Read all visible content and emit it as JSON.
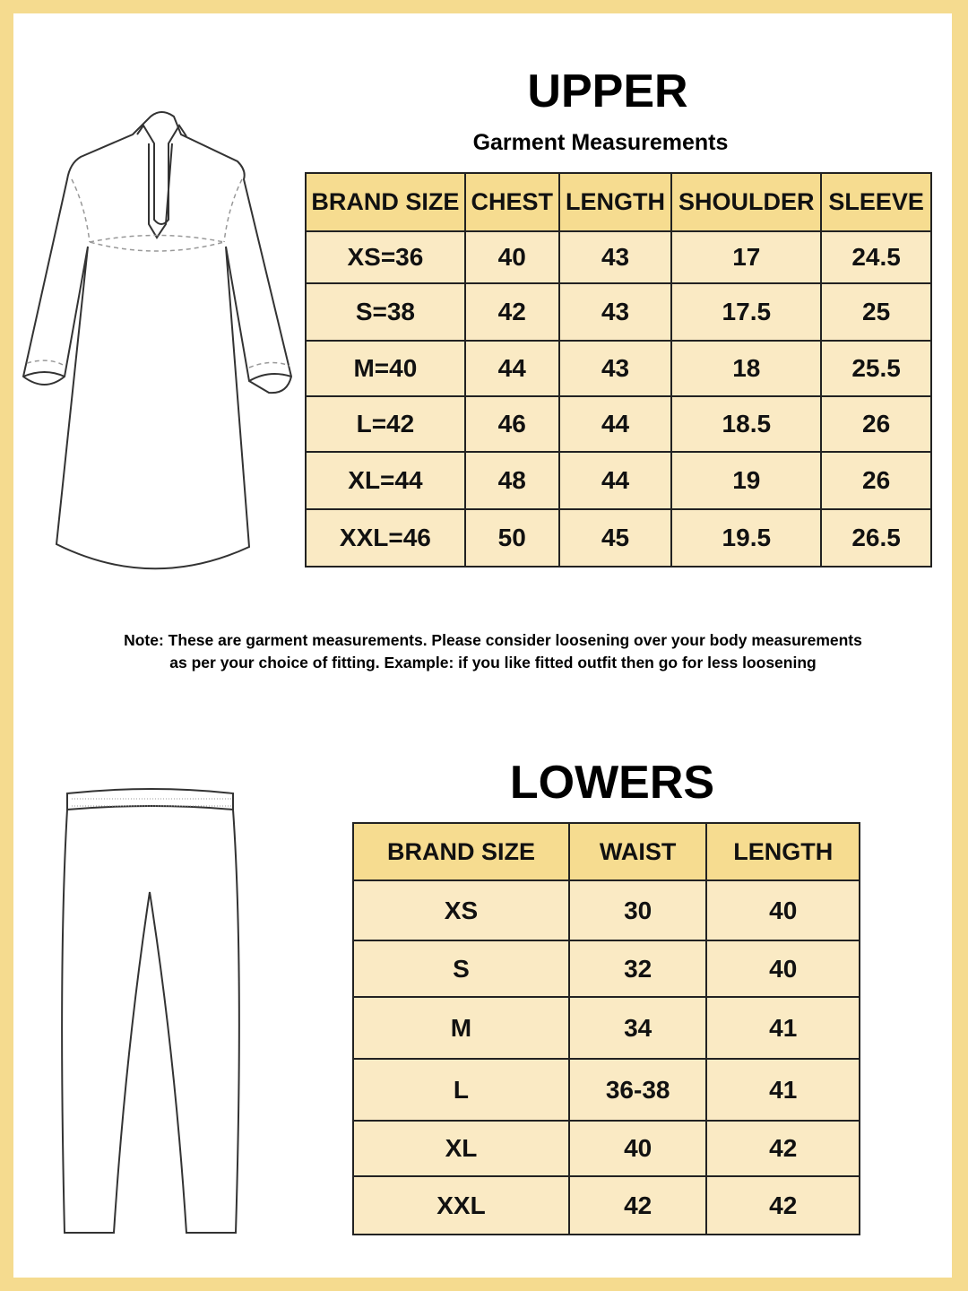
{
  "upper": {
    "title": "UPPER",
    "subtitle": "Garment Measurements",
    "headers": [
      "BRAND SIZE",
      "CHEST",
      "LENGTH",
      "SHOULDER",
      "SLEEVE"
    ],
    "rows": [
      [
        "XS=36",
        "40",
        "43",
        "17",
        "24.5"
      ],
      [
        "S=38",
        "42",
        "43",
        "17.5",
        "25"
      ],
      [
        "M=40",
        "44",
        "43",
        "18",
        "25.5"
      ],
      [
        "L=42",
        "46",
        "44",
        "18.5",
        "26"
      ],
      [
        "XL=44",
        "48",
        "44",
        "19",
        "26"
      ],
      [
        "XXL=46",
        "50",
        "45",
        "19.5",
        "26.5"
      ]
    ]
  },
  "note": {
    "line1": "Note: These are garment measurements. Please consider loosening over your body measurements",
    "line2": "as per your choice of fitting. Example: if you like fitted outfit then go for less loosening"
  },
  "lowers": {
    "title": "LOWERS",
    "headers": [
      "BRAND SIZE",
      "WAIST",
      "LENGTH"
    ],
    "rows": [
      [
        "XS",
        "30",
        "40"
      ],
      [
        "S",
        "32",
        "40"
      ],
      [
        "M",
        "34",
        "41"
      ],
      [
        "L",
        "36-38",
        "41"
      ],
      [
        "XL",
        "40",
        "42"
      ],
      [
        "XXL",
        "42",
        "42"
      ]
    ]
  },
  "colors": {
    "border": "#f5db8f",
    "header": "#f6dc90",
    "cell": "#faeac4"
  }
}
